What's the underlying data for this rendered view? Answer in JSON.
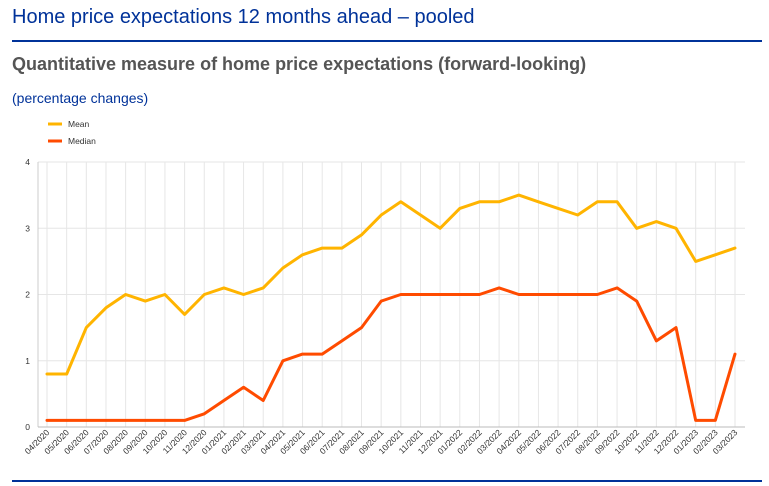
{
  "page": {
    "title": "Home price expectations 12 months ahead – pooled",
    "subtitle": "Quantitative measure of home price expectations (forward-looking)",
    "units": "(percentage changes)"
  },
  "chart_data": {
    "type": "line",
    "title": "Quantitative measure of home price expectations (forward-looking)",
    "subtitle": "(percentage changes)",
    "xlabel": "",
    "ylabel": "",
    "ylim": [
      0,
      4
    ],
    "yticks": [
      "0",
      "1",
      "2",
      "3",
      "4"
    ],
    "grid": true,
    "legend_position": "top-left",
    "categories": [
      "04/2020",
      "05/2020",
      "06/2020",
      "07/2020",
      "08/2020",
      "09/2020",
      "10/2020",
      "11/2020",
      "12/2020",
      "01/2021",
      "02/2021",
      "03/2021",
      "04/2021",
      "05/2021",
      "06/2021",
      "07/2021",
      "08/2021",
      "09/2021",
      "10/2021",
      "11/2021",
      "12/2021",
      "01/2022",
      "02/2022",
      "03/2022",
      "04/2022",
      "05/2022",
      "06/2022",
      "07/2022",
      "08/2022",
      "09/2022",
      "10/2022",
      "11/2022",
      "12/2022",
      "01/2023",
      "02/2023",
      "03/2023"
    ],
    "series": [
      {
        "name": "Mean",
        "color": "#FFB400",
        "values": [
          0.8,
          0.8,
          1.5,
          1.8,
          2.0,
          1.9,
          2.0,
          1.7,
          2.0,
          2.1,
          2.0,
          2.1,
          2.4,
          2.6,
          2.7,
          2.7,
          2.9,
          3.2,
          3.4,
          3.2,
          3.0,
          3.3,
          3.4,
          3.4,
          3.5,
          3.4,
          3.3,
          3.2,
          3.4,
          3.4,
          3.0,
          3.1,
          3.0,
          2.5,
          2.6,
          2.7
        ]
      },
      {
        "name": "Median",
        "color": "#FF4B00",
        "values": [
          0.1,
          0.1,
          0.1,
          0.1,
          0.1,
          0.1,
          0.1,
          0.1,
          0.2,
          0.4,
          0.6,
          0.4,
          1.0,
          1.1,
          1.1,
          1.3,
          1.5,
          1.9,
          2.0,
          2.0,
          2.0,
          2.0,
          2.0,
          2.1,
          2.0,
          2.0,
          2.0,
          2.0,
          2.0,
          2.1,
          1.9,
          1.3,
          1.5,
          0.1,
          0.1,
          1.1
        ]
      }
    ]
  }
}
